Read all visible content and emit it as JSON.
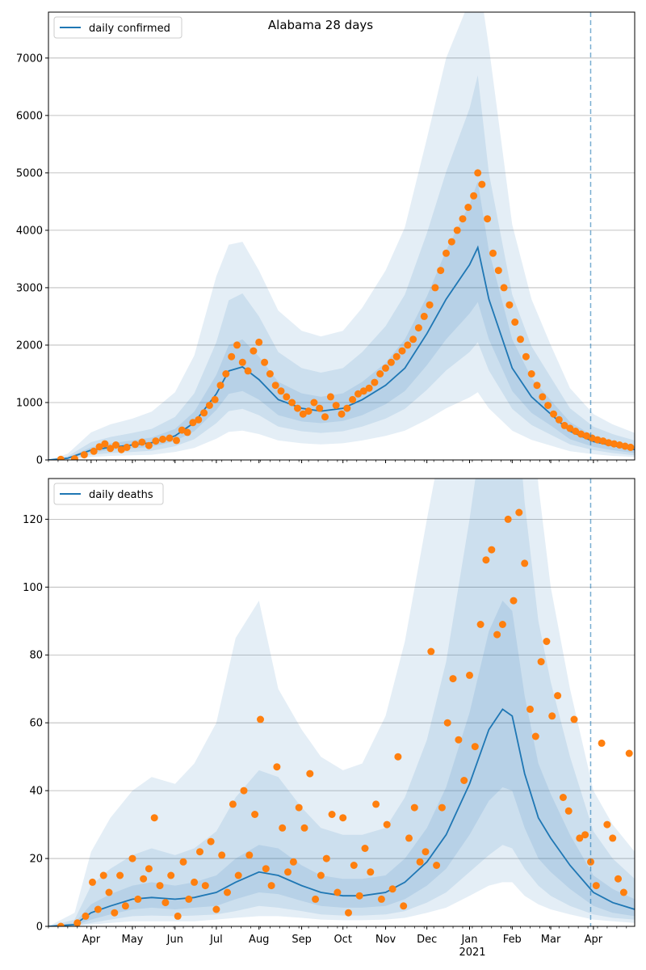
{
  "figure": {
    "title": "Alabama 28 days"
  },
  "colors": {
    "model_line": "#1f77b4",
    "observed_points": "#ff7f0e",
    "band": "#1f77b4",
    "grid": "#b0b0b0",
    "forecast_line": "#1f77b4"
  },
  "x_axis": {
    "tick_labels": [
      "Apr",
      "May",
      "Jun",
      "Jul",
      "Aug",
      "Sep",
      "Oct",
      "Nov",
      "Dec",
      "Jan",
      "Feb",
      "Mar",
      "Apr"
    ],
    "tick_dates": [
      "2020-04-01",
      "2020-05-01",
      "2020-06-01",
      "2020-07-01",
      "2020-08-01",
      "2020-09-01",
      "2020-10-01",
      "2020-11-01",
      "2020-12-01",
      "2021-01-01",
      "2021-02-01",
      "2021-03-01",
      "2021-04-01"
    ],
    "year_label": "2021",
    "range": [
      "2020-03-01",
      "2021-05-01"
    ],
    "forecast_start": "2021-03-30"
  },
  "chart_data": [
    {
      "type": "line",
      "title": "Alabama 28 days",
      "legend": "daily confirmed",
      "legend_position": "top-left",
      "ylim": [
        0,
        7800
      ],
      "y_ticks": [
        0,
        1000,
        2000,
        3000,
        4000,
        5000,
        6000,
        7000
      ],
      "grid": true,
      "model_line": {
        "name": "daily confirmed",
        "x": [
          "2020-03-01",
          "2020-03-15",
          "2020-04-01",
          "2020-04-15",
          "2020-05-01",
          "2020-05-15",
          "2020-06-01",
          "2020-06-15",
          "2020-07-01",
          "2020-07-10",
          "2020-07-20",
          "2020-08-01",
          "2020-08-15",
          "2020-09-01",
          "2020-09-15",
          "2020-10-01",
          "2020-10-15",
          "2020-11-01",
          "2020-11-15",
          "2020-12-01",
          "2020-12-15",
          "2021-01-01",
          "2021-01-07",
          "2021-01-15",
          "2021-02-01",
          "2021-02-15",
          "2021-03-01",
          "2021-03-15",
          "2021-04-01",
          "2021-04-15",
          "2021-05-01"
        ],
        "y": [
          0,
          30,
          170,
          220,
          260,
          300,
          420,
          650,
          1150,
          1550,
          1620,
          1400,
          1050,
          900,
          850,
          900,
          1050,
          1300,
          1600,
          2200,
          2800,
          3400,
          3700,
          2800,
          1600,
          1100,
          800,
          500,
          320,
          250,
          180
        ]
      },
      "bands": [
        {
          "name": "inner",
          "low": [
            0,
            20,
            130,
            170,
            200,
            230,
            330,
            500,
            870,
            1150,
            1200,
            1050,
            780,
            670,
            640,
            680,
            780,
            970,
            1200,
            1650,
            2100,
            2550,
            2750,
            2100,
            1200,
            820,
            600,
            360,
            230,
            170,
            120
          ],
          "high": [
            0,
            45,
            220,
            290,
            340,
            390,
            540,
            840,
            1480,
            2000,
            2100,
            1800,
            1360,
            1160,
            1100,
            1160,
            1360,
            1690,
            2100,
            2850,
            3650,
            4450,
            4850,
            3650,
            2100,
            1430,
            1040,
            660,
            420,
            330,
            250
          ]
        },
        {
          "name": "middle",
          "low": [
            0,
            10,
            90,
            120,
            140,
            160,
            240,
            360,
            640,
            850,
            890,
            780,
            580,
            500,
            470,
            500,
            580,
            720,
            890,
            1220,
            1560,
            1880,
            2050,
            1560,
            890,
            610,
            440,
            270,
            170,
            120,
            80
          ],
          "high": [
            0,
            65,
            310,
            400,
            470,
            540,
            750,
            1160,
            2050,
            2780,
            2900,
            2500,
            1880,
            1600,
            1520,
            1600,
            1880,
            2330,
            2880,
            3950,
            5020,
            6120,
            6700,
            5000,
            2880,
            1980,
            1440,
            900,
            580,
            450,
            340
          ]
        },
        {
          "name": "outer",
          "low": [
            0,
            5,
            50,
            70,
            80,
            90,
            140,
            210,
            370,
            490,
            510,
            450,
            340,
            290,
            270,
            290,
            340,
            420,
            510,
            700,
            900,
            1090,
            1180,
            900,
            510,
            350,
            250,
            150,
            100,
            70,
            50
          ],
          "high": [
            0,
            110,
            480,
            620,
            720,
            840,
            1180,
            1820,
            3200,
            3750,
            3800,
            3300,
            2600,
            2250,
            2150,
            2250,
            2650,
            3300,
            4050,
            5600,
            7000,
            8000,
            8500,
            7200,
            4100,
            2800,
            2000,
            1250,
            800,
            620,
            470
          ]
        }
      ],
      "observed": {
        "x": [
          "2020-03-10",
          "2020-03-20",
          "2020-03-27",
          "2020-04-03",
          "2020-04-07",
          "2020-04-11",
          "2020-04-15",
          "2020-04-19",
          "2020-04-23",
          "2020-04-27",
          "2020-05-03",
          "2020-05-08",
          "2020-05-13",
          "2020-05-18",
          "2020-05-23",
          "2020-05-28",
          "2020-06-02",
          "2020-06-06",
          "2020-06-10",
          "2020-06-14",
          "2020-06-18",
          "2020-06-22",
          "2020-06-26",
          "2020-06-30",
          "2020-07-04",
          "2020-07-08",
          "2020-07-12",
          "2020-07-16",
          "2020-07-20",
          "2020-07-24",
          "2020-07-28",
          "2020-08-01",
          "2020-08-05",
          "2020-08-09",
          "2020-08-13",
          "2020-08-17",
          "2020-08-21",
          "2020-08-25",
          "2020-08-29",
          "2020-09-02",
          "2020-09-06",
          "2020-09-10",
          "2020-09-14",
          "2020-09-18",
          "2020-09-22",
          "2020-09-26",
          "2020-09-30",
          "2020-10-04",
          "2020-10-08",
          "2020-10-12",
          "2020-10-16",
          "2020-10-20",
          "2020-10-24",
          "2020-10-28",
          "2020-11-01",
          "2020-11-05",
          "2020-11-09",
          "2020-11-13",
          "2020-11-17",
          "2020-11-21",
          "2020-11-25",
          "2020-11-29",
          "2020-12-03",
          "2020-12-07",
          "2020-12-11",
          "2020-12-15",
          "2020-12-19",
          "2020-12-23",
          "2020-12-27",
          "2020-12-31",
          "2021-01-04",
          "2021-01-07",
          "2021-01-10",
          "2021-01-14",
          "2021-01-18",
          "2021-01-22",
          "2021-01-26",
          "2021-01-30",
          "2021-02-03",
          "2021-02-07",
          "2021-02-11",
          "2021-02-15",
          "2021-02-19",
          "2021-02-23",
          "2021-02-27",
          "2021-03-03",
          "2021-03-07",
          "2021-03-11",
          "2021-03-15",
          "2021-03-19",
          "2021-03-23",
          "2021-03-27",
          "2021-03-31",
          "2021-04-04",
          "2021-04-08",
          "2021-04-12",
          "2021-04-16",
          "2021-04-20",
          "2021-04-24",
          "2021-04-28"
        ],
        "y": [
          10,
          20,
          90,
          150,
          230,
          280,
          200,
          260,
          180,
          220,
          270,
          310,
          250,
          330,
          360,
          380,
          340,
          520,
          480,
          650,
          700,
          820,
          950,
          1050,
          1300,
          1500,
          1800,
          2000,
          1700,
          1550,
          1900,
          2050,
          1700,
          1500,
          1300,
          1200,
          1100,
          1000,
          900,
          800,
          850,
          1000,
          900,
          750,
          1100,
          950,
          800,
          900,
          1050,
          1150,
          1200,
          1250,
          1350,
          1500,
          1600,
          1700,
          1800,
          1900,
          2000,
          2100,
          2300,
          2500,
          2700,
          3000,
          3300,
          3600,
          3800,
          4000,
          4200,
          4400,
          4600,
          5000,
          4800,
          4200,
          3600,
          3300,
          3000,
          2700,
          2400,
          2100,
          1800,
          1500,
          1300,
          1100,
          950,
          800,
          700,
          600,
          550,
          500,
          450,
          420,
          380,
          350,
          330,
          300,
          280,
          260,
          240,
          220
        ]
      }
    },
    {
      "type": "line",
      "legend": "daily deaths",
      "legend_position": "top-left",
      "ylim": [
        0,
        132
      ],
      "y_ticks": [
        0,
        20,
        40,
        60,
        80,
        100,
        120
      ],
      "grid": true,
      "model_line": {
        "name": "daily deaths",
        "x": [
          "2020-03-01",
          "2020-03-20",
          "2020-04-01",
          "2020-04-15",
          "2020-05-01",
          "2020-05-15",
          "2020-06-01",
          "2020-06-15",
          "2020-07-01",
          "2020-07-15",
          "2020-08-01",
          "2020-08-15",
          "2020-09-01",
          "2020-09-15",
          "2020-10-01",
          "2020-10-15",
          "2020-11-01",
          "2020-11-15",
          "2020-12-01",
          "2020-12-15",
          "2021-01-01",
          "2021-01-15",
          "2021-01-25",
          "2021-02-01",
          "2021-02-10",
          "2021-02-20",
          "2021-03-01",
          "2021-03-15",
          "2021-04-01",
          "2021-04-15",
          "2021-05-01"
        ],
        "y": [
          0,
          0.5,
          4,
          6,
          8,
          8.5,
          8,
          8.5,
          10,
          13,
          16,
          15,
          12,
          10,
          9,
          9,
          10,
          13,
          19,
          27,
          42,
          58,
          64,
          62,
          45,
          32,
          26,
          18,
          10,
          7,
          5
        ]
      },
      "bands": [
        {
          "name": "inner",
          "low": [
            0,
            0.2,
            2,
            3.5,
            5,
            5.5,
            5,
            5.5,
            6,
            8,
            10,
            9.5,
            7.5,
            6,
            5.5,
            5.5,
            6,
            8,
            12,
            17,
            27,
            37,
            41,
            40,
            29,
            20,
            16,
            11,
            6,
            4,
            3
          ],
          "high": [
            0,
            1,
            6.5,
            9.5,
            12,
            13,
            12,
            13,
            15,
            20,
            24,
            23,
            18,
            15,
            14,
            14,
            15,
            20,
            29,
            41,
            63,
            87,
            96,
            93,
            68,
            48,
            39,
            27,
            15,
            11,
            8
          ]
        },
        {
          "name": "middle",
          "low": [
            0,
            0.1,
            1,
            2,
            3,
            3.2,
            3,
            3.2,
            3.5,
            4.5,
            6,
            5.5,
            4.5,
            3.5,
            3.2,
            3.2,
            3.5,
            4.5,
            7,
            10,
            16,
            21,
            24,
            23,
            17,
            12,
            9,
            6,
            3.5,
            2.5,
            2
          ],
          "high": [
            0,
            2,
            12,
            17,
            21,
            23,
            21,
            23,
            28,
            38,
            46,
            44,
            35,
            29,
            27,
            27,
            29,
            38,
            55,
            78,
            120,
            160,
            175,
            170,
            125,
            90,
            72,
            50,
            28,
            20,
            14
          ]
        },
        {
          "name": "outer",
          "low": [
            0,
            0,
            0.5,
            1,
            1.5,
            1.5,
            1.5,
            1.5,
            2,
            2.5,
            3,
            3,
            2.5,
            2,
            1.8,
            1.8,
            2,
            2.5,
            4,
            5.5,
            9,
            12,
            13,
            13,
            9,
            6.5,
            5,
            3.5,
            2,
            1.5,
            1
          ],
          "high": [
            0,
            4,
            22,
            32,
            40,
            44,
            42,
            48,
            60,
            85,
            96,
            70,
            58,
            50,
            46,
            48,
            62,
            84,
            120,
            150,
            200,
            250,
            260,
            250,
            190,
            130,
            100,
            70,
            40,
            30,
            22
          ]
        }
      ],
      "observed": {
        "x": [
          "2020-03-10",
          "2020-03-22",
          "2020-03-28",
          "2020-04-02",
          "2020-04-06",
          "2020-04-10",
          "2020-04-14",
          "2020-04-18",
          "2020-04-22",
          "2020-04-26",
          "2020-05-01",
          "2020-05-05",
          "2020-05-09",
          "2020-05-13",
          "2020-05-17",
          "2020-05-21",
          "2020-05-25",
          "2020-05-29",
          "2020-06-03",
          "2020-06-07",
          "2020-06-11",
          "2020-06-15",
          "2020-06-19",
          "2020-06-23",
          "2020-06-27",
          "2020-07-01",
          "2020-07-05",
          "2020-07-09",
          "2020-07-13",
          "2020-07-17",
          "2020-07-21",
          "2020-07-25",
          "2020-07-29",
          "2020-08-02",
          "2020-08-06",
          "2020-08-10",
          "2020-08-14",
          "2020-08-18",
          "2020-08-22",
          "2020-08-26",
          "2020-08-30",
          "2020-09-03",
          "2020-09-07",
          "2020-09-11",
          "2020-09-15",
          "2020-09-19",
          "2020-09-23",
          "2020-09-27",
          "2020-10-01",
          "2020-10-05",
          "2020-10-09",
          "2020-10-13",
          "2020-10-17",
          "2020-10-21",
          "2020-10-25",
          "2020-10-29",
          "2020-11-02",
          "2020-11-06",
          "2020-11-10",
          "2020-11-14",
          "2020-11-18",
          "2020-11-22",
          "2020-11-26",
          "2020-11-30",
          "2020-12-04",
          "2020-12-08",
          "2020-12-12",
          "2020-12-16",
          "2020-12-20",
          "2020-12-24",
          "2020-12-28",
          "2021-01-01",
          "2021-01-05",
          "2021-01-09",
          "2021-01-13",
          "2021-01-17",
          "2021-01-21",
          "2021-01-25",
          "2021-01-29",
          "2021-02-02",
          "2021-02-06",
          "2021-02-10",
          "2021-02-14",
          "2021-02-18",
          "2021-02-22",
          "2021-02-26",
          "2021-03-02",
          "2021-03-06",
          "2021-03-10",
          "2021-03-14",
          "2021-03-18",
          "2021-03-22",
          "2021-03-26",
          "2021-03-30",
          "2021-04-03",
          "2021-04-07",
          "2021-04-11",
          "2021-04-15",
          "2021-04-19",
          "2021-04-23",
          "2021-04-27"
        ],
        "y": [
          0,
          1,
          3,
          13,
          5,
          15,
          10,
          4,
          15,
          6,
          20,
          8,
          14,
          17,
          32,
          12,
          7,
          15,
          3,
          19,
          8,
          13,
          22,
          12,
          25,
          5,
          21,
          10,
          36,
          15,
          40,
          21,
          33,
          61,
          17,
          12,
          47,
          29,
          16,
          19,
          35,
          29,
          45,
          8,
          15,
          20,
          33,
          10,
          32,
          4,
          18,
          9,
          23,
          16,
          36,
          8,
          30,
          11,
          50,
          6,
          26,
          35,
          19,
          22,
          81,
          18,
          35,
          60,
          73,
          55,
          43,
          74,
          53,
          89,
          108,
          111,
          86,
          89,
          120,
          96,
          122,
          107,
          64,
          56,
          78,
          84,
          62,
          68,
          38,
          34,
          61,
          26,
          27,
          19,
          12,
          54,
          30,
          26,
          14,
          10,
          51
        ]
      }
    }
  ]
}
